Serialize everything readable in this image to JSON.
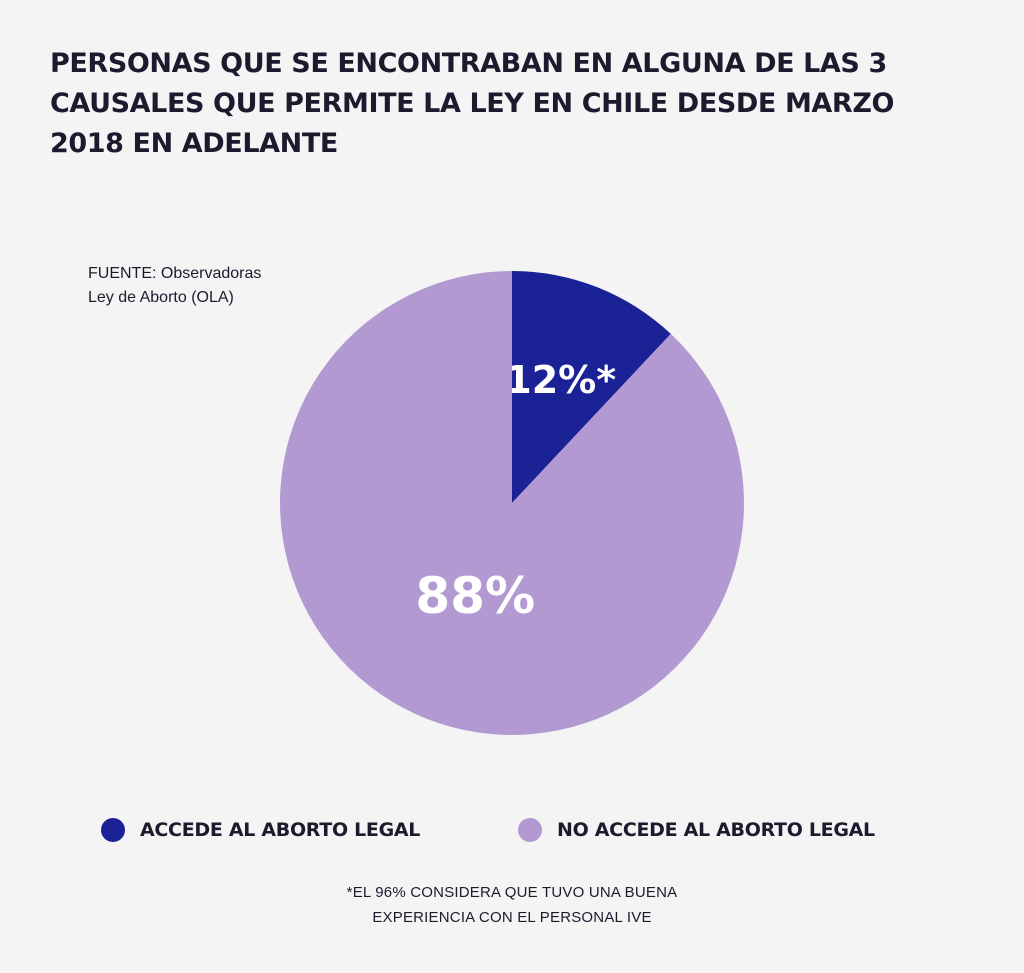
{
  "title": {
    "lines": [
      "PERSONAS QUE SE ENCONTRABAN EN ALGUNA DE LAS 3",
      "CAUSALES QUE PERMITE LA LEY EN CHILE DESDE MARZO",
      "2018 EN ADELANTE"
    ]
  },
  "source": {
    "lines": [
      "FUENTE: Observadoras",
      "Ley de Aborto (OLA)"
    ]
  },
  "chart_data": {
    "type": "pie",
    "title": "PERSONAS QUE SE ENCONTRABAN EN ALGUNA DE LAS 3 CAUSALES QUE PERMITE LA LEY EN CHILE DESDE MARZO 2018 EN ADELANTE",
    "categories": [
      "ACCEDE AL ABORTO LEGAL",
      "NO ACCEDE AL ABORTO LEGAL"
    ],
    "values": [
      12,
      88
    ],
    "data_labels": [
      "12%*",
      "88%"
    ],
    "colors": [
      "#1b2296",
      "#b399d2"
    ],
    "legend": "bottom"
  },
  "footnote": {
    "lines": [
      "*EL 96% CONSIDERA QUE TUVO UNA BUENA",
      "EXPERIENCIA CON EL PERSONAL IVE"
    ]
  }
}
